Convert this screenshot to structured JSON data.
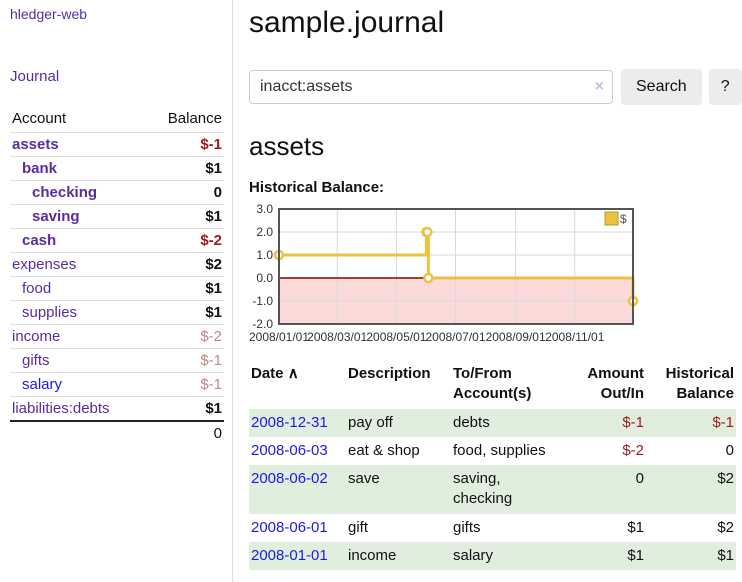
{
  "app": {
    "title": "hledger-web"
  },
  "sidebar": {
    "journal_link": "Journal",
    "table": {
      "account_header": "Account",
      "balance_header": "Balance",
      "rows": [
        {
          "account": "assets",
          "balance": "$-1",
          "depth": 1,
          "bold": true,
          "balClass": "neg-strong",
          "link": "purple"
        },
        {
          "account": "bank",
          "balance": "$1",
          "depth": 2,
          "bold": true,
          "balClass": "",
          "link": "purple"
        },
        {
          "account": "checking",
          "balance": "0",
          "depth": 3,
          "bold": true,
          "balClass": "",
          "link": "purple"
        },
        {
          "account": "saving",
          "balance": "$1",
          "depth": 3,
          "bold": true,
          "balClass": "",
          "link": "purple"
        },
        {
          "account": "cash",
          "balance": "$-2",
          "depth": 2,
          "bold": true,
          "balClass": "neg-strong",
          "link": "purple"
        },
        {
          "account": "expenses",
          "balance": "$2",
          "depth": 1,
          "bold": false,
          "balClass": "",
          "link": "purple"
        },
        {
          "account": "food",
          "balance": "$1",
          "depth": 2,
          "bold": false,
          "balClass": "",
          "link": "purple"
        },
        {
          "account": "supplies",
          "balance": "$1",
          "depth": 2,
          "bold": false,
          "balClass": "",
          "link": "purple"
        },
        {
          "account": "income",
          "balance": "$-2",
          "depth": 1,
          "bold": false,
          "balClass": "neg-light",
          "link": "purple"
        },
        {
          "account": "gifts",
          "balance": "$-1",
          "depth": 2,
          "bold": false,
          "balClass": "neg-light",
          "link": "purple"
        },
        {
          "account": "salary",
          "balance": "$-1",
          "depth": 2,
          "bold": false,
          "balClass": "neg-light",
          "link": "blue"
        },
        {
          "account": "liabilities:debts",
          "balance": "$1",
          "depth": 1,
          "bold": false,
          "balClass": "",
          "link": "purple"
        }
      ],
      "total": "0"
    }
  },
  "main": {
    "title": "sample.journal",
    "search": {
      "value": "inacct:assets",
      "clear_label": "×",
      "button_label": "Search",
      "help_label": "?"
    },
    "account_heading": "assets",
    "chart_label": "Historical Balance:"
  },
  "chart_data": {
    "type": "line",
    "title": "Historical Balance",
    "series": [
      {
        "name": "$",
        "color": "#edc240",
        "step": true,
        "points": [
          [
            "2008-01-01",
            1
          ],
          [
            "2008-06-01",
            2
          ],
          [
            "2008-06-02",
            2
          ],
          [
            "2008-06-03",
            0
          ],
          [
            "2008-12-31",
            -1
          ]
        ]
      }
    ],
    "ylim": [
      -2,
      3
    ],
    "yticks": [
      "3.0",
      "2.0",
      "1.0",
      "0.0",
      "-1.0",
      "-2.0"
    ],
    "xticks": [
      "2008/01/01",
      "2008/03/01",
      "2008/05/01",
      "2008/07/01",
      "2008/09/01",
      "2008/11/01"
    ],
    "xrange": [
      "2008-01-01",
      "2008-12-31"
    ],
    "grid": true,
    "legend_position": "top-right",
    "legend": [
      {
        "label": "$",
        "color": "#edc240"
      }
    ],
    "negative_region_color": "#fbdada",
    "zero_line_color": "#8b0000",
    "grid_color": "#d9d9d9",
    "border_color": "#545454"
  },
  "register": {
    "headers": {
      "date": "Date",
      "sort_indicator": "∧",
      "description": "Description",
      "accounts": "To/From Account(s)",
      "amount": "Amount Out/In",
      "balance": "Historical Balance"
    },
    "rows": [
      {
        "date": "2008-12-31",
        "description": "pay off",
        "accounts": "debts",
        "amount": "$-1",
        "amount_neg": true,
        "balance": "$-1",
        "balance_neg": true
      },
      {
        "date": "2008-06-03",
        "description": "eat & shop",
        "accounts": "food, supplies",
        "amount": "$-2",
        "amount_neg": true,
        "balance": "0",
        "balance_neg": false
      },
      {
        "date": "2008-06-02",
        "description": "save",
        "accounts": "saving, checking",
        "amount": "0",
        "amount_neg": false,
        "balance": "$2",
        "balance_neg": false
      },
      {
        "date": "2008-06-01",
        "description": "gift",
        "accounts": "gifts",
        "amount": "$1",
        "amount_neg": false,
        "balance": "$2",
        "balance_neg": false
      },
      {
        "date": "2008-01-01",
        "description": "income",
        "accounts": "salary",
        "amount": "$1",
        "amount_neg": false,
        "balance": "$1",
        "balance_neg": false
      }
    ]
  }
}
